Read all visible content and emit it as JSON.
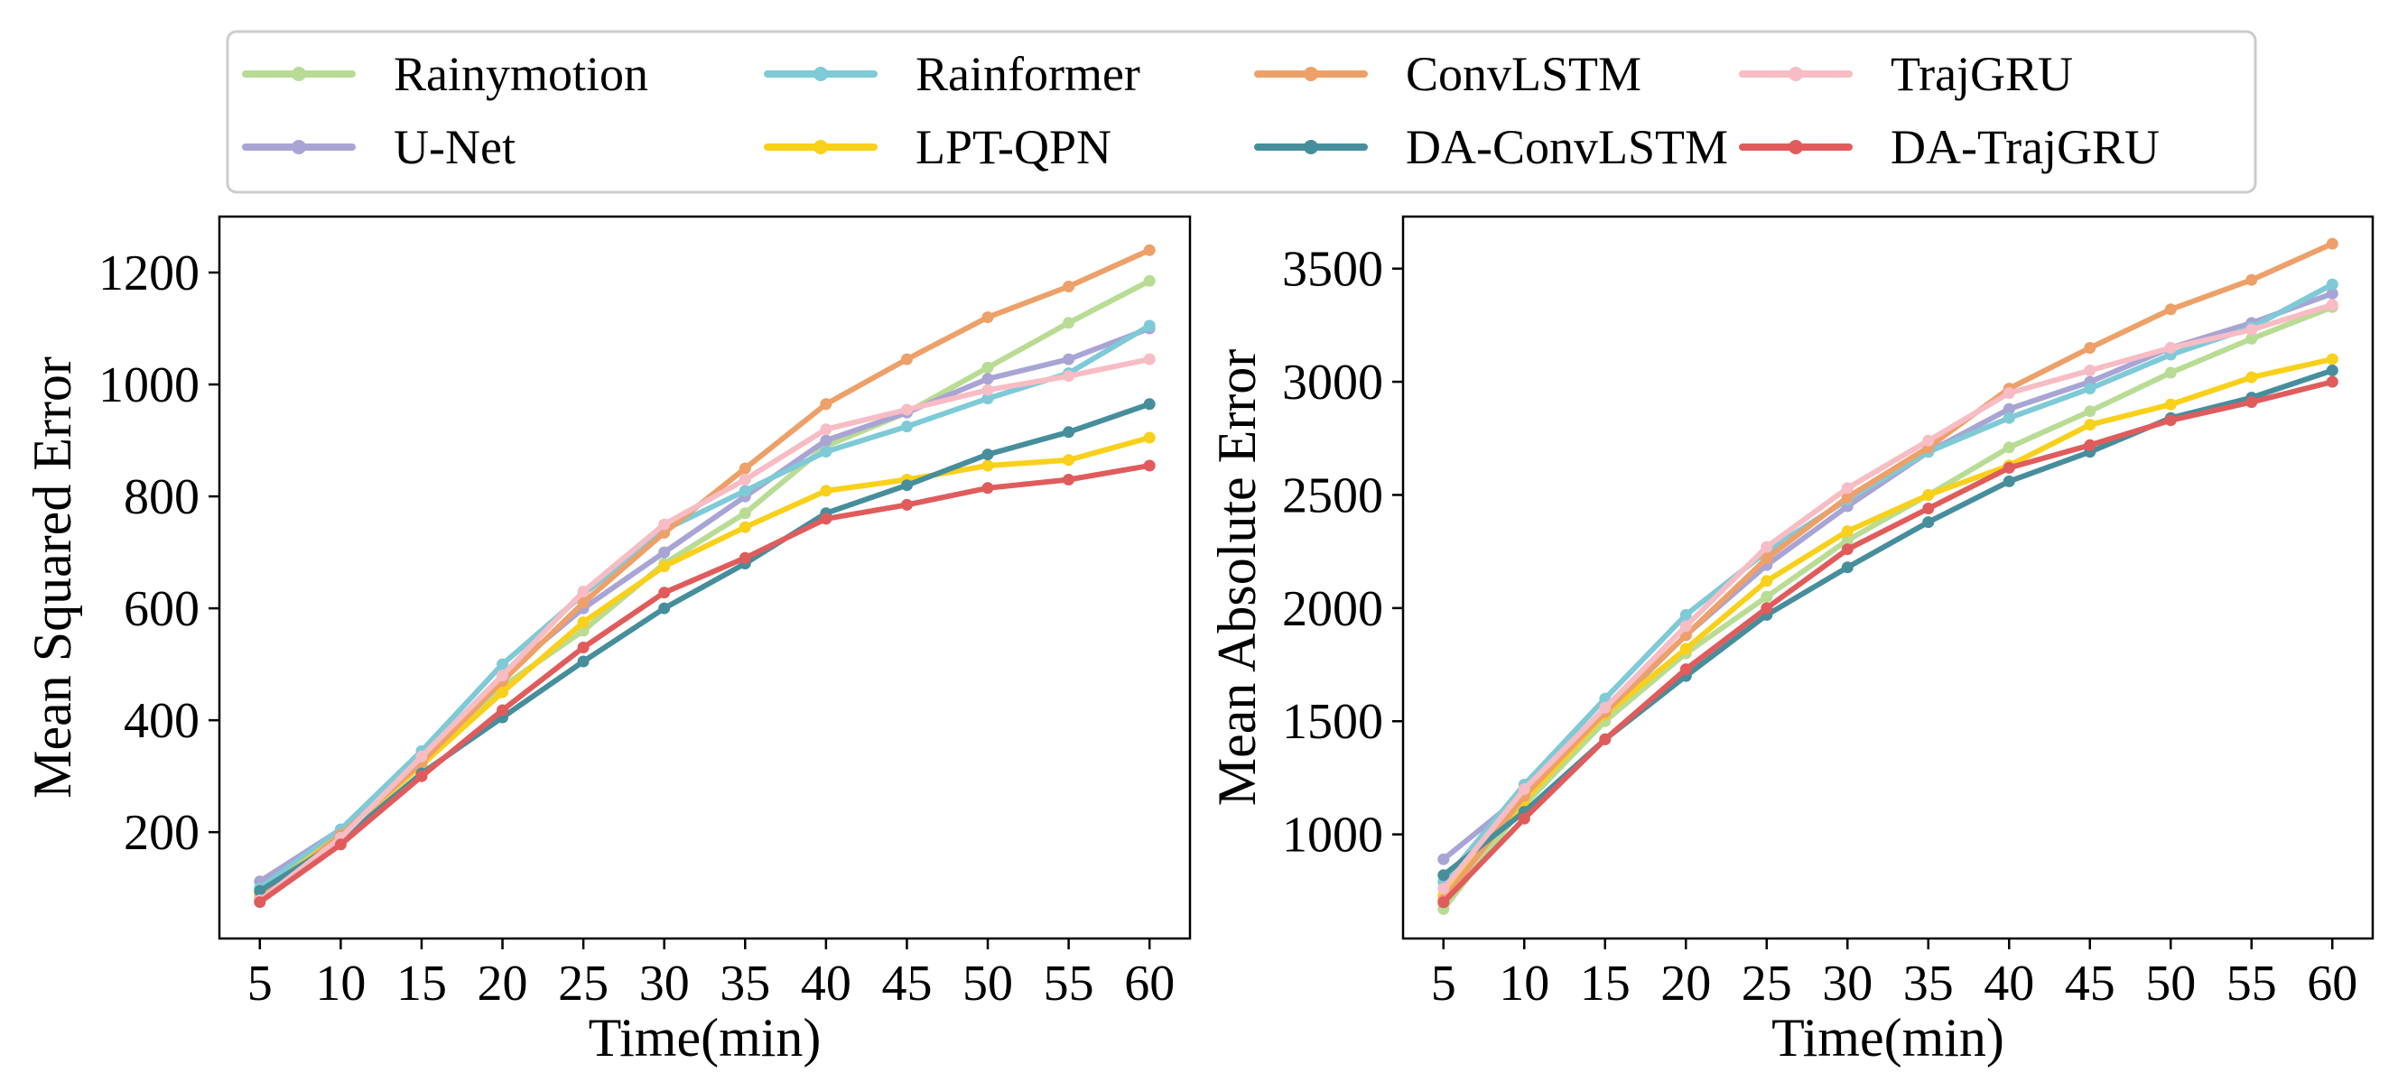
{
  "chart_data": [
    {
      "type": "line",
      "xlabel": "Time(min)",
      "ylabel": "Mean Squared Error",
      "x": [
        5,
        10,
        15,
        20,
        25,
        30,
        35,
        40,
        45,
        50,
        55,
        60
      ],
      "xlim": [
        2.5,
        62.5
      ],
      "ylim": [
        10,
        1300
      ],
      "yticks": [
        200,
        400,
        600,
        800,
        1000,
        1200
      ],
      "grid": false,
      "series": [
        {
          "name": "Rainymotion",
          "values": [
            85,
            195,
            320,
            460,
            560,
            680,
            770,
            890,
            950,
            1030,
            1110,
            1185
          ]
        },
        {
          "name": "U-Net",
          "values": [
            112,
            205,
            335,
            480,
            600,
            700,
            800,
            900,
            950,
            1010,
            1045,
            1100
          ]
        },
        {
          "name": "Rainformer",
          "values": [
            100,
            205,
            345,
            500,
            625,
            740,
            810,
            880,
            925,
            975,
            1020,
            1105
          ]
        },
        {
          "name": "LPT-QPN",
          "values": [
            90,
            195,
            320,
            450,
            575,
            675,
            745,
            810,
            830,
            855,
            865,
            905
          ]
        },
        {
          "name": "ConvLSTM",
          "values": [
            80,
            195,
            325,
            470,
            610,
            735,
            850,
            965,
            1045,
            1120,
            1175,
            1240
          ]
        },
        {
          "name": "DA-ConvLSTM",
          "values": [
            95,
            185,
            305,
            405,
            505,
            600,
            680,
            770,
            820,
            875,
            915,
            965
          ]
        },
        {
          "name": "TrajGRU",
          "values": [
            78,
            190,
            335,
            480,
            630,
            750,
            830,
            920,
            955,
            990,
            1015,
            1045
          ]
        },
        {
          "name": "DA-TrajGRU",
          "values": [
            75,
            178,
            300,
            418,
            530,
            628,
            690,
            760,
            785,
            815,
            830,
            855
          ]
        }
      ]
    },
    {
      "type": "line",
      "xlabel": "Time(min)",
      "ylabel": "Mean Absolute Error",
      "x": [
        5,
        10,
        15,
        20,
        25,
        30,
        35,
        40,
        45,
        50,
        55,
        60
      ],
      "xlim": [
        2.5,
        62.5
      ],
      "ylim": [
        540,
        3730
      ],
      "yticks": [
        1000,
        1500,
        2000,
        2500,
        3000,
        3500
      ],
      "grid": false,
      "series": [
        {
          "name": "Rainymotion",
          "values": [
            670,
            1130,
            1500,
            1800,
            2050,
            2300,
            2500,
            2710,
            2870,
            3040,
            3190,
            3330
          ]
        },
        {
          "name": "U-Net",
          "values": [
            890,
            1180,
            1530,
            1880,
            2190,
            2450,
            2690,
            2880,
            3000,
            3150,
            3260,
            3390
          ]
        },
        {
          "name": "Rainformer",
          "values": [
            790,
            1220,
            1600,
            1970,
            2250,
            2480,
            2690,
            2840,
            2970,
            3120,
            3240,
            3430
          ]
        },
        {
          "name": "LPT-QPN",
          "values": [
            730,
            1150,
            1530,
            1820,
            2120,
            2340,
            2500,
            2630,
            2810,
            2900,
            3020,
            3100
          ]
        },
        {
          "name": "ConvLSTM",
          "values": [
            710,
            1170,
            1540,
            1880,
            2220,
            2490,
            2710,
            2970,
            3150,
            3320,
            3450,
            3610
          ]
        },
        {
          "name": "DA-ConvLSTM",
          "values": [
            820,
            1100,
            1420,
            1700,
            1970,
            2180,
            2380,
            2560,
            2690,
            2840,
            2930,
            3050
          ]
        },
        {
          "name": "TrajGRU",
          "values": [
            760,
            1200,
            1560,
            1920,
            2270,
            2530,
            2740,
            2950,
            3050,
            3150,
            3230,
            3340
          ]
        },
        {
          "name": "DA-TrajGRU",
          "values": [
            700,
            1070,
            1420,
            1730,
            2000,
            2260,
            2440,
            2620,
            2720,
            2830,
            2910,
            3000
          ]
        }
      ]
    }
  ],
  "legend": {
    "placement": "top-center",
    "entries": [
      {
        "name": "Rainymotion",
        "color": "#b8dc94"
      },
      {
        "name": "Rainformer",
        "color": "#7ecad7"
      },
      {
        "name": "ConvLSTM",
        "color": "#eda068"
      },
      {
        "name": "TrajGRU",
        "color": "#f7bcc4"
      },
      {
        "name": "U-Net",
        "color": "#a8a4d4"
      },
      {
        "name": "LPT-QPN",
        "color": "#f9d01a"
      },
      {
        "name": "DA-ConvLSTM",
        "color": "#468e9c"
      },
      {
        "name": "DA-TrajGRU",
        "color": "#e05c5c"
      }
    ]
  }
}
